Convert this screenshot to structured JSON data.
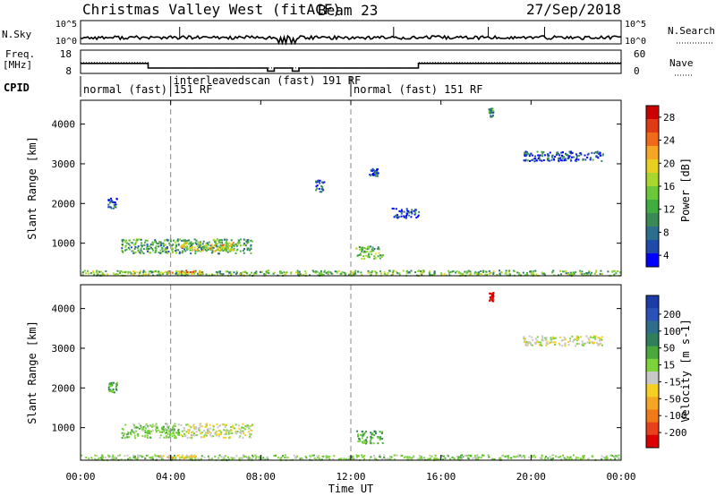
{
  "header": {
    "station_title": "Christmas Valley West (fitACF)",
    "beam_label": "Beam 23",
    "date_label": "27/Sep/2018"
  },
  "strip_labels": {
    "nsky": "N.Sky",
    "nsky_ticks": [
      "10^5",
      "10^0"
    ],
    "nsearch": "N.Search",
    "freq_lines": [
      "Freq.",
      "[MHz]"
    ],
    "freq_ticks": [
      "18",
      "8"
    ],
    "nave": "Nave",
    "nave_ticks": [
      "60",
      "0"
    ],
    "cpid": "CPID"
  },
  "cpid_segments": [
    {
      "label": "normal (fast) 151 RF",
      "start_hour": 0.0
    },
    {
      "label": "interleavedscan (fast) 191 RF",
      "start_hour": 4.0
    },
    {
      "label": "normal (fast) 151 RF",
      "start_hour": 12.0
    }
  ],
  "time_axis": {
    "label": "Time UT",
    "ticks": [
      "00:00",
      "04:00",
      "08:00",
      "12:00",
      "16:00",
      "20:00",
      "00:00"
    ],
    "range_hours": [
      0,
      24
    ],
    "dashed_at_hours": [
      4,
      12
    ]
  },
  "chart_data": [
    {
      "type": "heatmap",
      "name": "power",
      "ylabel": "Slant Range [km]",
      "yticks": [
        1000,
        2000,
        3000,
        4000
      ],
      "ylim": [
        180,
        4600
      ],
      "xlim": [
        0,
        24
      ],
      "colorbar": {
        "label": "Power [dB]",
        "ticks": [
          "4",
          "8",
          "12",
          "16",
          "20",
          "24",
          "28"
        ],
        "colors": [
          "#0000ff",
          "#1e4aa8",
          "#2b6e8e",
          "#3a8a55",
          "#3fae3f",
          "#6cc83b",
          "#a8d82e",
          "#e8d020",
          "#f5a623",
          "#f06a1a",
          "#e03a14",
          "#cc0000"
        ]
      },
      "regions": [
        {
          "t0": 1.8,
          "t1": 7.6,
          "r0": 760,
          "r1": 1120,
          "v": 12
        },
        {
          "t0": 4.4,
          "t1": 6.8,
          "r0": 800,
          "r1": 1040,
          "v": 18
        },
        {
          "t0": 12.2,
          "t1": 13.4,
          "r0": 620,
          "r1": 940,
          "v": 14
        },
        {
          "t0": 0.0,
          "t1": 24.0,
          "r0": 200,
          "r1": 330,
          "v": 14
        },
        {
          "t0": 3.8,
          "t1": 5.4,
          "r0": 240,
          "r1": 330,
          "v": 22
        },
        {
          "t0": 19.6,
          "t1": 23.2,
          "r0": 3080,
          "r1": 3330,
          "v": 6
        },
        {
          "t0": 1.2,
          "t1": 1.6,
          "r0": 1900,
          "r1": 2150,
          "v": 6
        },
        {
          "t0": 13.8,
          "t1": 15.0,
          "r0": 1650,
          "r1": 1900,
          "v": 6
        },
        {
          "t0": 12.8,
          "t1": 13.2,
          "r0": 2700,
          "r1": 2900,
          "v": 6
        },
        {
          "t0": 18.1,
          "t1": 18.3,
          "r0": 4200,
          "r1": 4420,
          "v": 10
        },
        {
          "t0": 10.4,
          "t1": 10.8,
          "r0": 2300,
          "r1": 2600,
          "v": 6
        }
      ]
    },
    {
      "type": "heatmap",
      "name": "velocity",
      "ylabel": "Slant Range [km]",
      "yticks": [
        1000,
        2000,
        3000,
        4000
      ],
      "ylim": [
        180,
        4600
      ],
      "xlim": [
        0,
        24
      ],
      "colorbar": {
        "label": "Velocity [m s-1]",
        "ticks": [
          "200",
          "100",
          "50",
          "15",
          "-15",
          "-50",
          "-100",
          "-200"
        ],
        "colors": [
          "#1c3ca8",
          "#2a52b8",
          "#2e6e8a",
          "#2f7f5a",
          "#4aa83c",
          "#7dd43a",
          "#c8c8c8",
          "#f5d020",
          "#f5a623",
          "#f07a1a",
          "#e8401a",
          "#dd0000"
        ]
      },
      "regions": [
        {
          "t0": 1.8,
          "t1": 4.4,
          "r0": 760,
          "r1": 1120,
          "v": 40
        },
        {
          "t0": 4.4,
          "t1": 7.6,
          "r0": 760,
          "r1": 1120,
          "v": 0
        },
        {
          "t0": 12.2,
          "t1": 13.4,
          "r0": 620,
          "r1": 940,
          "v": 60
        },
        {
          "t0": 0.0,
          "t1": 24.0,
          "r0": 200,
          "r1": 330,
          "v": 30
        },
        {
          "t0": 3.4,
          "t1": 5.2,
          "r0": 240,
          "r1": 330,
          "v": -40
        },
        {
          "t0": 19.6,
          "t1": 23.2,
          "r0": 3080,
          "r1": 3330,
          "v": 0
        },
        {
          "t0": 1.2,
          "t1": 1.6,
          "r0": 1900,
          "r1": 2150,
          "v": 60
        },
        {
          "t0": 18.1,
          "t1": 18.3,
          "r0": 4200,
          "r1": 4420,
          "v": -220
        }
      ]
    }
  ]
}
